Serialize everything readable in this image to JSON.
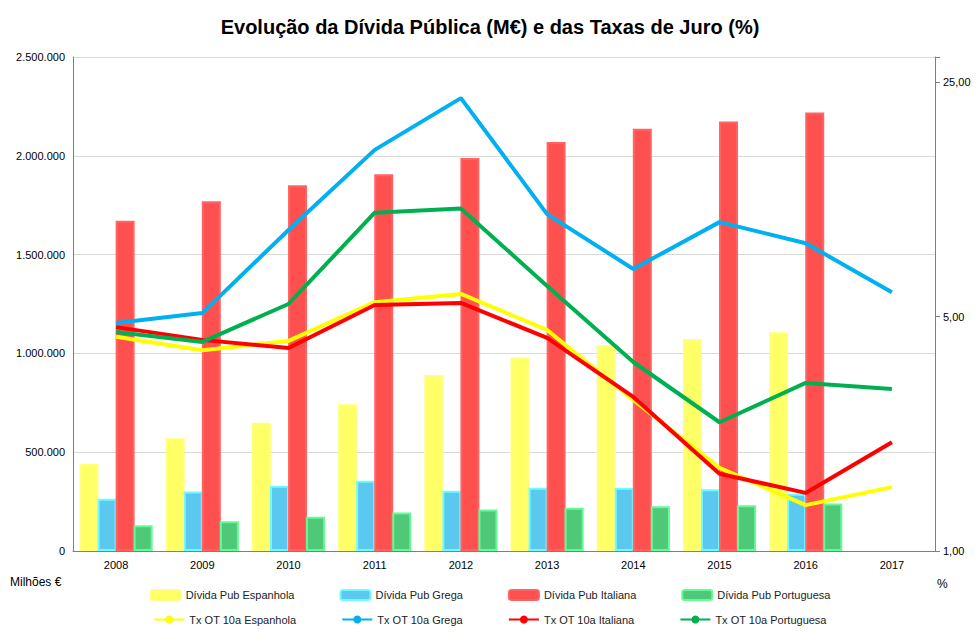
{
  "chart_data": {
    "type": "bar",
    "title": "Evolução da Dívida Pública (M€) e das Taxas de Juro (%)",
    "y_label": "Milhões €",
    "y2_label": "%",
    "categories": [
      "2008",
      "2009",
      "2010",
      "2011",
      "2012",
      "2013",
      "2014",
      "2015",
      "2016",
      "2017"
    ],
    "ylim": [
      0,
      2500000
    ],
    "yticks": [
      0,
      {
        "value": 500000,
        "label": "500.000"
      },
      {
        "value": 1000000,
        "label": "1.000.000"
      },
      {
        "value": 1500000,
        "label": "1.500.000"
      },
      {
        "value": 2000000,
        "label": "2.000.000"
      },
      {
        "value": 2500000,
        "label": "2.500.000"
      }
    ],
    "y2lim": [
      1,
      29.7
    ],
    "y2ticks": [
      {
        "value": 1,
        "label": "1,00"
      },
      {
        "value": 5,
        "label": "5,00"
      },
      {
        "value": 25,
        "label": "25,00"
      }
    ],
    "log": "y2",
    "grid": true,
    "legend": "bottom",
    "series": [
      {
        "name": "Dívida Pub Espanhola",
        "type": "bar",
        "color": "#ffff66",
        "values": [
          440000,
          570000,
          649000,
          743000,
          891000,
          979000,
          1041000,
          1073000,
          1107000,
          null
        ]
      },
      {
        "name": "Dívida Pub Grega",
        "type": "bar",
        "color": "#5bc8ef",
        "values": [
          264000,
          301000,
          330000,
          356000,
          305000,
          320000,
          320000,
          312000,
          290000,
          null
        ]
      },
      {
        "name": "Dívida Pub Italiana",
        "type": "bar",
        "color": "#ff5050",
        "values": [
          1671000,
          1770000,
          1851000,
          1907000,
          1989000,
          2070000,
          2137000,
          2173000,
          2219000,
          null
        ]
      },
      {
        "name": "Dívida Pub Portuguesa",
        "type": "bar",
        "color": "#4fc978",
        "values": [
          130000,
          150000,
          173000,
          195000,
          210000,
          219000,
          226000,
          231000,
          240000,
          null
        ]
      },
      {
        "name": "Tx OT 10a Espanhola",
        "type": "line",
        "axis": "y2",
        "marker": "none",
        "color": "#ffff00",
        "values": [
          4.35,
          3.97,
          4.23,
          5.52,
          5.84,
          4.56,
          2.82,
          1.77,
          1.37,
          1.55
        ]
      },
      {
        "name": "Tx OT 10a Grega",
        "type": "line",
        "axis": "y2",
        "marker": "none",
        "color": "#00b0f0",
        "values": [
          4.78,
          5.12,
          9.06,
          15.7,
          22.4,
          10.1,
          6.93,
          9.56,
          8.27,
          5.91
        ]
      },
      {
        "name": "Tx OT 10a Italiana",
        "type": "line",
        "axis": "y2",
        "marker": "none",
        "color": "#ff0000",
        "values": [
          4.65,
          4.26,
          4.03,
          5.41,
          5.49,
          4.32,
          2.88,
          1.7,
          1.49,
          2.11
        ]
      },
      {
        "name": "Tx OT 10a Portuguesa",
        "type": "line",
        "axis": "y2",
        "marker": "none",
        "color": "#00b050",
        "values": [
          4.5,
          4.2,
          5.45,
          10.2,
          10.5,
          6.17,
          3.66,
          2.42,
          3.17,
          3.04
        ]
      }
    ]
  }
}
